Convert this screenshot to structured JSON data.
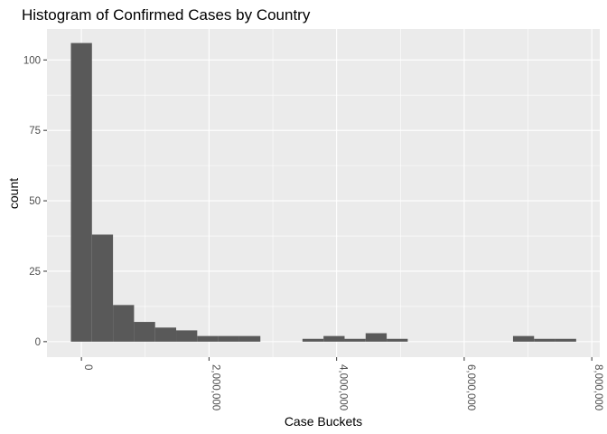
{
  "chart_data": {
    "type": "bar",
    "title": "Histogram of Confirmed Cases by Country",
    "xlabel": "Case Buckets",
    "ylabel": "count",
    "bin_width": 330000,
    "bins": [
      {
        "start": -165000,
        "end": 165000,
        "count": 106
      },
      {
        "start": 165000,
        "end": 495000,
        "count": 38
      },
      {
        "start": 495000,
        "end": 825000,
        "count": 13
      },
      {
        "start": 825000,
        "end": 1155000,
        "count": 7
      },
      {
        "start": 1155000,
        "end": 1485000,
        "count": 5
      },
      {
        "start": 1485000,
        "end": 1815000,
        "count": 4
      },
      {
        "start": 1815000,
        "end": 2145000,
        "count": 2
      },
      {
        "start": 2145000,
        "end": 2475000,
        "count": 2
      },
      {
        "start": 2475000,
        "end": 2805000,
        "count": 2
      },
      {
        "start": 2805000,
        "end": 3135000,
        "count": 0
      },
      {
        "start": 3135000,
        "end": 3465000,
        "count": 0
      },
      {
        "start": 3465000,
        "end": 3795000,
        "count": 1
      },
      {
        "start": 3795000,
        "end": 4125000,
        "count": 2
      },
      {
        "start": 4125000,
        "end": 4455000,
        "count": 1
      },
      {
        "start": 4455000,
        "end": 4785000,
        "count": 3
      },
      {
        "start": 4785000,
        "end": 5115000,
        "count": 1
      },
      {
        "start": 5115000,
        "end": 5445000,
        "count": 0
      },
      {
        "start": 5445000,
        "end": 5775000,
        "count": 0
      },
      {
        "start": 5775000,
        "end": 6105000,
        "count": 0
      },
      {
        "start": 6105000,
        "end": 6435000,
        "count": 0
      },
      {
        "start": 6435000,
        "end": 6765000,
        "count": 0
      },
      {
        "start": 6765000,
        "end": 7095000,
        "count": 2
      },
      {
        "start": 7095000,
        "end": 7425000,
        "count": 1
      },
      {
        "start": 7425000,
        "end": 7755000,
        "count": 1
      }
    ],
    "xlim": [
      -540000,
      8125000
    ],
    "ylim": [
      -5.5,
      111
    ],
    "x_ticks": [
      0,
      2000000,
      4000000,
      6000000,
      8000000
    ],
    "x_tick_labels": [
      "0",
      "2,000,000",
      "4,000,000",
      "6,000,000",
      "8,000,000"
    ],
    "y_ticks": [
      0,
      25,
      50,
      75,
      100
    ],
    "y_tick_labels": [
      "0",
      "25",
      "50",
      "75",
      "100"
    ],
    "grid": true,
    "panel_background": "#ebebeb",
    "grid_color": "#ffffff",
    "bar_color": "#595959"
  }
}
